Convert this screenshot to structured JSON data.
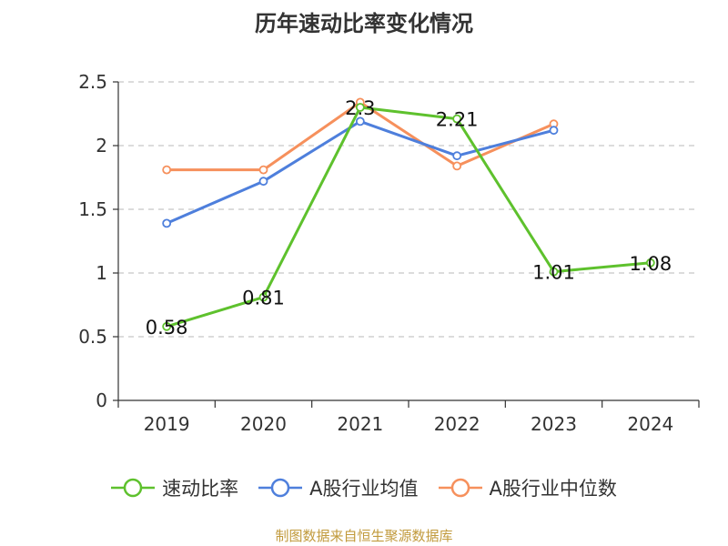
{
  "chart_data": {
    "type": "line",
    "title": "历年速动比率变化情况",
    "categories": [
      "2019",
      "2020",
      "2021",
      "2022",
      "2023",
      "2024"
    ],
    "ylim": [
      0,
      2.5
    ],
    "yticks": [
      "0",
      "0.5",
      "1",
      "1.5",
      "2",
      "2.5"
    ],
    "grid": true,
    "legend_position": "bottom",
    "series": [
      {
        "name": "速动比率",
        "color": "#5ec12d",
        "values": [
          0.58,
          0.81,
          2.3,
          2.21,
          1.01,
          1.08
        ],
        "labels": [
          "0.58",
          "0.81",
          "2.3",
          "2.21",
          "1.01",
          "1.08"
        ]
      },
      {
        "name": "A股行业均值",
        "color": "#4e7fdc",
        "values": [
          1.39,
          1.72,
          2.19,
          1.92,
          2.12,
          null
        ]
      },
      {
        "name": "A股行业中位数",
        "color": "#f6905c",
        "values": [
          1.81,
          1.81,
          2.34,
          1.84,
          2.17,
          null
        ]
      }
    ]
  },
  "source": "制图数据来自恒生聚源数据库"
}
